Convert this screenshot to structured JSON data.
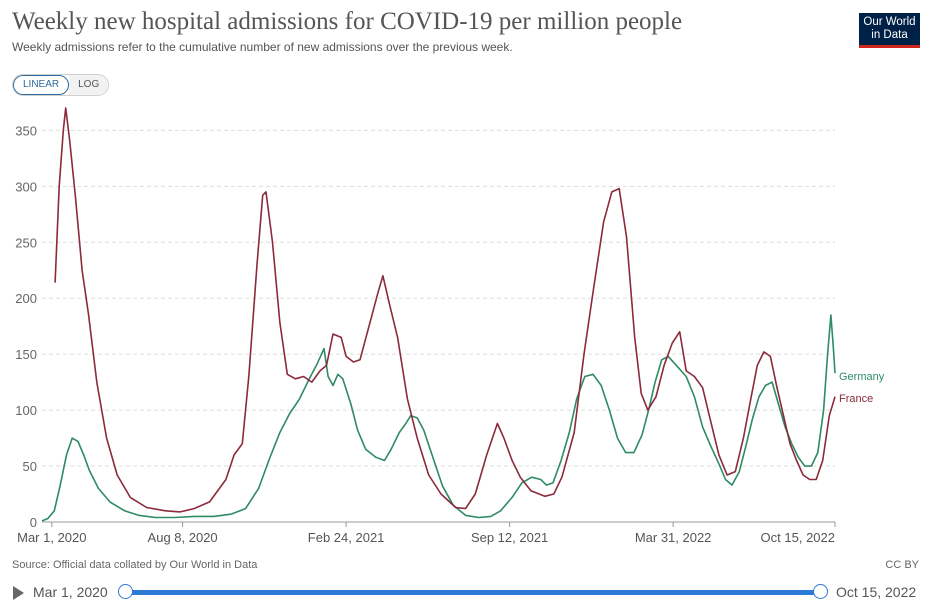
{
  "header": {
    "title": "Weekly new hospital admissions for COVID-19 per million people",
    "subtitle": "Weekly admissions refer to the cumulative number of new admissions over the previous week.",
    "logo_line1": "Our World",
    "logo_line2": "in Data"
  },
  "controls": {
    "linear_label": "LINEAR",
    "log_label": "LOG",
    "active": "LINEAR"
  },
  "footer": {
    "source": "Source: Official data collated by Our World in Data",
    "license": "CC BY"
  },
  "timeline": {
    "start_label": "Mar 1, 2020",
    "end_label": "Oct 15, 2022"
  },
  "colors": {
    "germany": "#2e8b63",
    "france": "#8b2a3a",
    "grid": "#dddddd",
    "accent": "#2d7ad6"
  },
  "chart_data": {
    "type": "line",
    "x_axis": {
      "min": "2020-02-18",
      "max": "2022-10-15",
      "ticks": [
        "2020-03-01",
        "2020-08-08",
        "2021-02-24",
        "2021-09-12",
        "2022-03-31",
        "2022-10-15"
      ],
      "tick_labels": [
        "Mar 1, 2020",
        "Aug 8, 2020",
        "Feb 24, 2021",
        "Sep 12, 2021",
        "Mar 31, 2022",
        "Oct 15, 2022"
      ]
    },
    "y_axis": {
      "min": 0,
      "max": 370,
      "ticks": [
        0,
        50,
        100,
        150,
        200,
        250,
        300,
        350
      ]
    },
    "grid": true,
    "legend_placement": "end-of-line labels",
    "series": [
      {
        "name": "Germany",
        "color": "#2e8b63",
        "points": [
          [
            "2020-02-18",
            1
          ],
          [
            "2020-02-25",
            3
          ],
          [
            "2020-03-04",
            10
          ],
          [
            "2020-03-11",
            32
          ],
          [
            "2020-03-19",
            60
          ],
          [
            "2020-03-26",
            75
          ],
          [
            "2020-04-02",
            72
          ],
          [
            "2020-04-09",
            60
          ],
          [
            "2020-04-16",
            46
          ],
          [
            "2020-04-27",
            30
          ],
          [
            "2020-05-11",
            18
          ],
          [
            "2020-05-29",
            10
          ],
          [
            "2020-06-15",
            6
          ],
          [
            "2020-07-06",
            4
          ],
          [
            "2020-07-30",
            4
          ],
          [
            "2020-08-22",
            5
          ],
          [
            "2020-09-15",
            5
          ],
          [
            "2020-10-06",
            7
          ],
          [
            "2020-10-24",
            12
          ],
          [
            "2020-11-09",
            30
          ],
          [
            "2020-11-23",
            58
          ],
          [
            "2020-12-05",
            80
          ],
          [
            "2020-12-17",
            97
          ],
          [
            "2020-12-29",
            110
          ],
          [
            "2021-01-10",
            128
          ],
          [
            "2021-01-20",
            142
          ],
          [
            "2021-01-28",
            155
          ],
          [
            "2021-02-02",
            130
          ],
          [
            "2021-02-08",
            122
          ],
          [
            "2021-02-14",
            132
          ],
          [
            "2021-02-20",
            128
          ],
          [
            "2021-03-02",
            105
          ],
          [
            "2021-03-10",
            82
          ],
          [
            "2021-03-20",
            65
          ],
          [
            "2021-04-01",
            58
          ],
          [
            "2021-04-12",
            55
          ],
          [
            "2021-04-20",
            65
          ],
          [
            "2021-04-30",
            80
          ],
          [
            "2021-05-08",
            88
          ],
          [
            "2021-05-14",
            95
          ],
          [
            "2021-05-22",
            93
          ],
          [
            "2021-05-30",
            82
          ],
          [
            "2021-06-10",
            58
          ],
          [
            "2021-06-22",
            32
          ],
          [
            "2021-07-05",
            15
          ],
          [
            "2021-07-20",
            6
          ],
          [
            "2021-08-05",
            4
          ],
          [
            "2021-08-20",
            5
          ],
          [
            "2021-09-01",
            10
          ],
          [
            "2021-09-15",
            22
          ],
          [
            "2021-09-27",
            35
          ],
          [
            "2021-10-09",
            40
          ],
          [
            "2021-10-20",
            38
          ],
          [
            "2021-10-27",
            33
          ],
          [
            "2021-11-04",
            35
          ],
          [
            "2021-11-14",
            55
          ],
          [
            "2021-11-24",
            80
          ],
          [
            "2021-12-03",
            110
          ],
          [
            "2021-12-13",
            130
          ],
          [
            "2021-12-23",
            132
          ],
          [
            "2022-01-02",
            122
          ],
          [
            "2022-01-12",
            100
          ],
          [
            "2022-01-22",
            75
          ],
          [
            "2022-02-01",
            62
          ],
          [
            "2022-02-11",
            62
          ],
          [
            "2022-02-21",
            78
          ],
          [
            "2022-03-01",
            100
          ],
          [
            "2022-03-09",
            125
          ],
          [
            "2022-03-17",
            145
          ],
          [
            "2022-03-25",
            148
          ],
          [
            "2022-04-04",
            140
          ],
          [
            "2022-04-16",
            130
          ],
          [
            "2022-04-26",
            112
          ],
          [
            "2022-05-06",
            85
          ],
          [
            "2022-05-16",
            68
          ],
          [
            "2022-05-26",
            52
          ],
          [
            "2022-06-03",
            38
          ],
          [
            "2022-06-11",
            33
          ],
          [
            "2022-06-20",
            45
          ],
          [
            "2022-06-28",
            68
          ],
          [
            "2022-07-06",
            92
          ],
          [
            "2022-07-14",
            112
          ],
          [
            "2022-07-22",
            122
          ],
          [
            "2022-07-30",
            125
          ],
          [
            "2022-08-07",
            105
          ],
          [
            "2022-08-15",
            85
          ],
          [
            "2022-08-23",
            70
          ],
          [
            "2022-08-31",
            58
          ],
          [
            "2022-09-08",
            50
          ],
          [
            "2022-09-16",
            50
          ],
          [
            "2022-09-24",
            62
          ],
          [
            "2022-10-01",
            100
          ],
          [
            "2022-10-06",
            150
          ],
          [
            "2022-10-10",
            185
          ],
          [
            "2022-10-13",
            155
          ],
          [
            "2022-10-15",
            133
          ]
        ]
      },
      {
        "name": "France",
        "color": "#8b2a3a",
        "points": [
          [
            "2020-03-05",
            214
          ],
          [
            "2020-03-10",
            300
          ],
          [
            "2020-03-15",
            350
          ],
          [
            "2020-03-18",
            370
          ],
          [
            "2020-03-23",
            340
          ],
          [
            "2020-03-30",
            290
          ],
          [
            "2020-04-07",
            225
          ],
          [
            "2020-04-15",
            185
          ],
          [
            "2020-04-25",
            125
          ],
          [
            "2020-05-07",
            75
          ],
          [
            "2020-05-20",
            42
          ],
          [
            "2020-06-05",
            22
          ],
          [
            "2020-06-25",
            13
          ],
          [
            "2020-07-18",
            10
          ],
          [
            "2020-08-05",
            9
          ],
          [
            "2020-08-22",
            12
          ],
          [
            "2020-09-10",
            18
          ],
          [
            "2020-09-30",
            38
          ],
          [
            "2020-10-10",
            60
          ],
          [
            "2020-10-20",
            70
          ],
          [
            "2020-10-28",
            130
          ],
          [
            "2020-11-07",
            230
          ],
          [
            "2020-11-14",
            292
          ],
          [
            "2020-11-18",
            295
          ],
          [
            "2020-11-26",
            250
          ],
          [
            "2020-12-05",
            178
          ],
          [
            "2020-12-14",
            132
          ],
          [
            "2020-12-24",
            128
          ],
          [
            "2021-01-03",
            130
          ],
          [
            "2021-01-13",
            125
          ],
          [
            "2021-01-23",
            135
          ],
          [
            "2021-01-31",
            140
          ],
          [
            "2021-02-08",
            168
          ],
          [
            "2021-02-18",
            165
          ],
          [
            "2021-02-24",
            148
          ],
          [
            "2021-03-05",
            143
          ],
          [
            "2021-03-13",
            145
          ],
          [
            "2021-03-24",
            175
          ],
          [
            "2021-04-04",
            205
          ],
          [
            "2021-04-10",
            220
          ],
          [
            "2021-04-18",
            195
          ],
          [
            "2021-04-28",
            165
          ],
          [
            "2021-05-10",
            110
          ],
          [
            "2021-05-22",
            75
          ],
          [
            "2021-06-05",
            42
          ],
          [
            "2021-06-20",
            25
          ],
          [
            "2021-07-08",
            13
          ],
          [
            "2021-07-20",
            12
          ],
          [
            "2021-08-01",
            25
          ],
          [
            "2021-08-15",
            60
          ],
          [
            "2021-08-28",
            88
          ],
          [
            "2021-09-05",
            75
          ],
          [
            "2021-09-15",
            55
          ],
          [
            "2021-09-25",
            40
          ],
          [
            "2021-10-08",
            28
          ],
          [
            "2021-10-25",
            23
          ],
          [
            "2021-11-05",
            25
          ],
          [
            "2021-11-15",
            40
          ],
          [
            "2021-11-30",
            80
          ],
          [
            "2021-12-12",
            150
          ],
          [
            "2021-12-24",
            210
          ],
          [
            "2022-01-05",
            268
          ],
          [
            "2022-01-15",
            295
          ],
          [
            "2022-01-24",
            298
          ],
          [
            "2022-02-02",
            255
          ],
          [
            "2022-02-12",
            165
          ],
          [
            "2022-02-20",
            115
          ],
          [
            "2022-02-28",
            100
          ],
          [
            "2022-03-10",
            112
          ],
          [
            "2022-03-20",
            140
          ],
          [
            "2022-03-30",
            160
          ],
          [
            "2022-04-08",
            170
          ],
          [
            "2022-04-16",
            135
          ],
          [
            "2022-04-26",
            130
          ],
          [
            "2022-05-06",
            120
          ],
          [
            "2022-05-16",
            90
          ],
          [
            "2022-05-26",
            60
          ],
          [
            "2022-06-05",
            42
          ],
          [
            "2022-06-15",
            45
          ],
          [
            "2022-06-25",
            75
          ],
          [
            "2022-07-04",
            110
          ],
          [
            "2022-07-12",
            140
          ],
          [
            "2022-07-20",
            152
          ],
          [
            "2022-07-28",
            148
          ],
          [
            "2022-08-05",
            120
          ],
          [
            "2022-08-13",
            95
          ],
          [
            "2022-08-21",
            70
          ],
          [
            "2022-08-29",
            55
          ],
          [
            "2022-09-06",
            42
          ],
          [
            "2022-09-14",
            38
          ],
          [
            "2022-09-22",
            38
          ],
          [
            "2022-09-30",
            55
          ],
          [
            "2022-10-08",
            95
          ],
          [
            "2022-10-15",
            112
          ]
        ]
      }
    ],
    "line_labels": [
      "Germany",
      "France"
    ]
  }
}
